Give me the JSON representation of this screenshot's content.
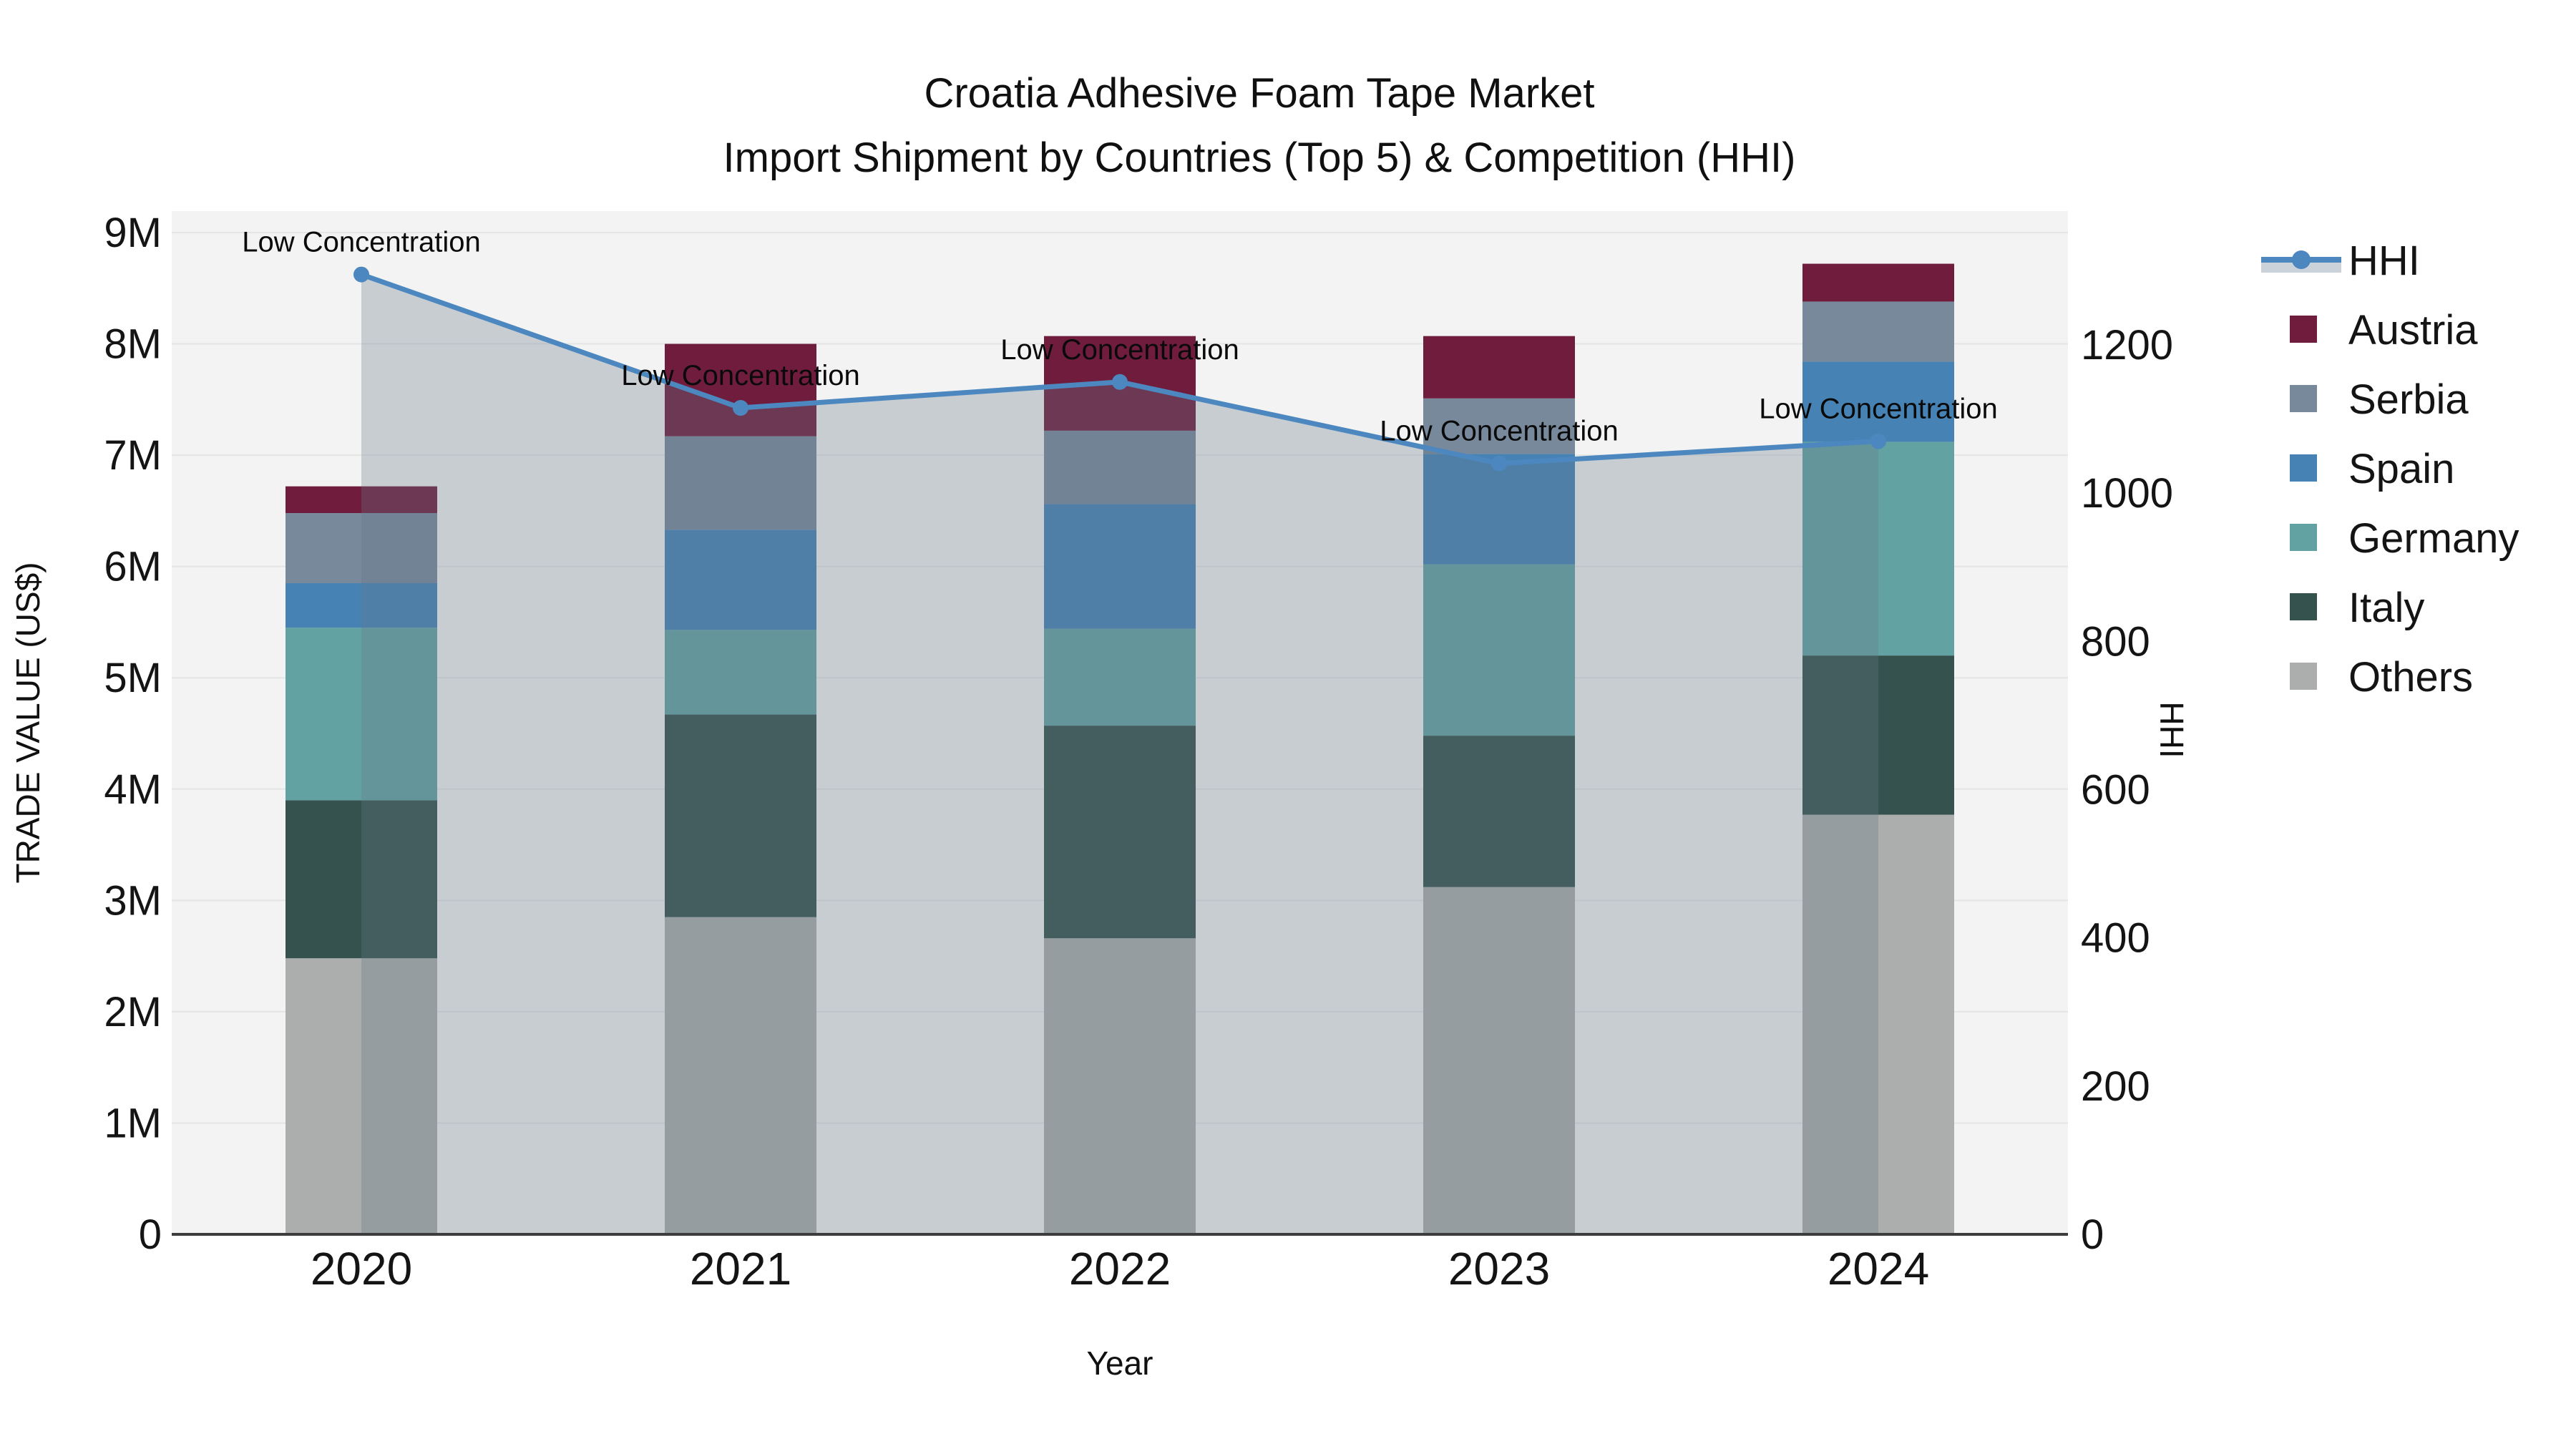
{
  "title": {
    "line1": "Croatia Adhesive Foam Tape Market",
    "line2": "Import Shipment by Countries (Top 5) & Competition (HHI)"
  },
  "axes": {
    "y_left_title": "TRADE VALUE (US$)",
    "y_right_title": "HHI",
    "x_title": "Year"
  },
  "chart_data": {
    "type": "combo-stacked-bar-line",
    "title": "Croatia Adhesive Foam Tape Market — Import Shipment by Countries (Top 5) & Competition (HHI)",
    "categories": [
      "2020",
      "2021",
      "2022",
      "2023",
      "2024"
    ],
    "bar_value_unit": "million US$",
    "series": [
      {
        "name": "Others",
        "color": "#abaeac",
        "values": [
          2.48,
          2.85,
          2.66,
          3.12,
          3.77
        ]
      },
      {
        "name": "Italy",
        "color": "#35524e",
        "values": [
          1.42,
          1.82,
          1.91,
          1.36,
          1.43
        ]
      },
      {
        "name": "Germany",
        "color": "#62a2a2",
        "values": [
          1.55,
          0.76,
          0.87,
          1.54,
          1.92
        ]
      },
      {
        "name": "Spain",
        "color": "#4682b4",
        "values": [
          0.4,
          0.9,
          1.12,
          0.99,
          0.72
        ]
      },
      {
        "name": "Serbia",
        "color": "#78899b",
        "values": [
          0.63,
          0.84,
          0.66,
          0.5,
          0.54
        ]
      },
      {
        "name": "Austria",
        "color": "#701d3d",
        "values": [
          0.24,
          0.83,
          0.85,
          0.56,
          0.34
        ]
      }
    ],
    "bar_totals": [
      6.72,
      8.0,
      8.07,
      8.07,
      8.72
    ],
    "line_series": {
      "name": "HHI",
      "axis": "right",
      "color": "#4c88bf",
      "fill_color": "rgba(104,119,135,0.30)",
      "values": [
        1295,
        1115,
        1150,
        1040,
        1070
      ],
      "point_annotation": "Low Concentration"
    },
    "y_left": {
      "label": "TRADE VALUE (US$)",
      "tick_labels": [
        "0",
        "1M",
        "2M",
        "3M",
        "4M",
        "5M",
        "6M",
        "7M",
        "8M",
        "9M"
      ],
      "tick_values": [
        0,
        1,
        2,
        3,
        4,
        5,
        6,
        7,
        8,
        9
      ],
      "range": [
        0,
        9.2
      ]
    },
    "y_right": {
      "label": "HHI",
      "tick_labels": [
        "0",
        "200",
        "400",
        "600",
        "800",
        "1000",
        "1200"
      ],
      "tick_values": [
        0,
        200,
        400,
        600,
        800,
        1000,
        1200
      ],
      "range": [
        0,
        1380
      ]
    },
    "x_label": "Year",
    "grid": "horizontal",
    "plot_bg": "#f2f3f2",
    "gridline_color": "#e4e6e5",
    "axisline_color": "#3d3d3d",
    "legend_position": "right",
    "legend": [
      {
        "key": "hhi",
        "label": "HHI",
        "type": "line",
        "color": "#4c88bf",
        "band_color": "#ccd2da"
      },
      {
        "key": "austria",
        "label": "Austria",
        "type": "box",
        "color": "#701d3d"
      },
      {
        "key": "serbia",
        "label": "Serbia",
        "type": "box",
        "color": "#78899b"
      },
      {
        "key": "spain",
        "label": "Spain",
        "type": "box",
        "color": "#4682b4"
      },
      {
        "key": "germany",
        "label": "Germany",
        "type": "box",
        "color": "#62a2a2"
      },
      {
        "key": "italy",
        "label": "Italy",
        "type": "box",
        "color": "#35524e"
      },
      {
        "key": "others",
        "label": "Others",
        "type": "box",
        "color": "#abaeac"
      }
    ]
  }
}
